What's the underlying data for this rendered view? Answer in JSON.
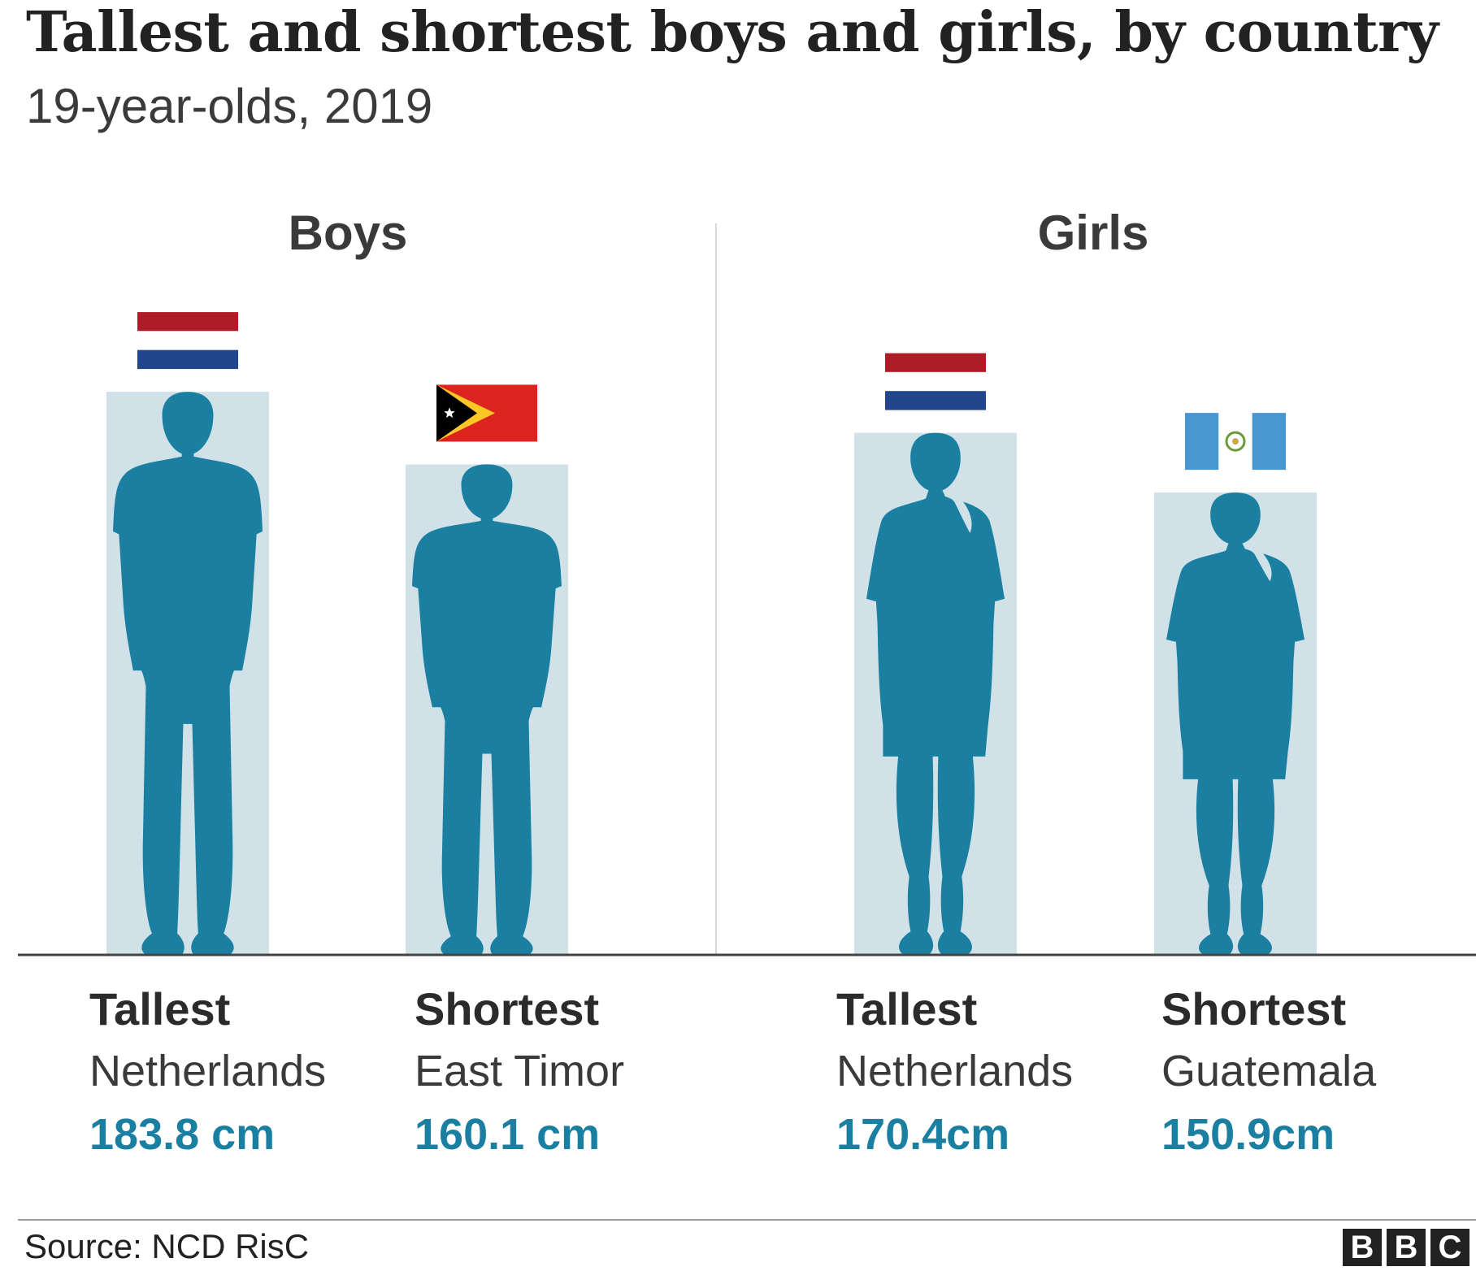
{
  "title": "Tallest and shortest boys and girls, by country",
  "subtitle": "19-year-olds, 2019",
  "source": "Source: NCD RisC",
  "logo": [
    "B",
    "B",
    "C"
  ],
  "colors": {
    "silhouette": "#1a7fa0",
    "bar": "#d0e1e7",
    "value_text": "#1a7fa0",
    "netherlands_red": "#ae1c28",
    "netherlands_blue": "#21468b",
    "timor_red": "#dc241f",
    "timor_yellow": "#ffc726",
    "guatemala_blue": "#4997d0"
  },
  "chart_data": {
    "type": "bar",
    "unit": "cm",
    "groups": [
      {
        "name": "Boys",
        "items": [
          {
            "role": "Tallest",
            "country": "Netherlands",
            "value": 183.8,
            "label": "183.8 cm",
            "flag": "netherlands-flag",
            "figure": "boy"
          },
          {
            "role": "Shortest",
            "country": "East Timor",
            "value": 160.1,
            "label": "160.1 cm",
            "flag": "east-timor-flag",
            "figure": "boy"
          }
        ]
      },
      {
        "name": "Girls",
        "items": [
          {
            "role": "Tallest",
            "country": "Netherlands",
            "value": 170.4,
            "label": "170.4cm",
            "flag": "netherlands-flag",
            "figure": "girl"
          },
          {
            "role": "Shortest",
            "country": "Guatemala",
            "value": 150.9,
            "label": "150.9cm",
            "flag": "guatemala-flag",
            "figure": "girl"
          }
        ]
      }
    ]
  }
}
